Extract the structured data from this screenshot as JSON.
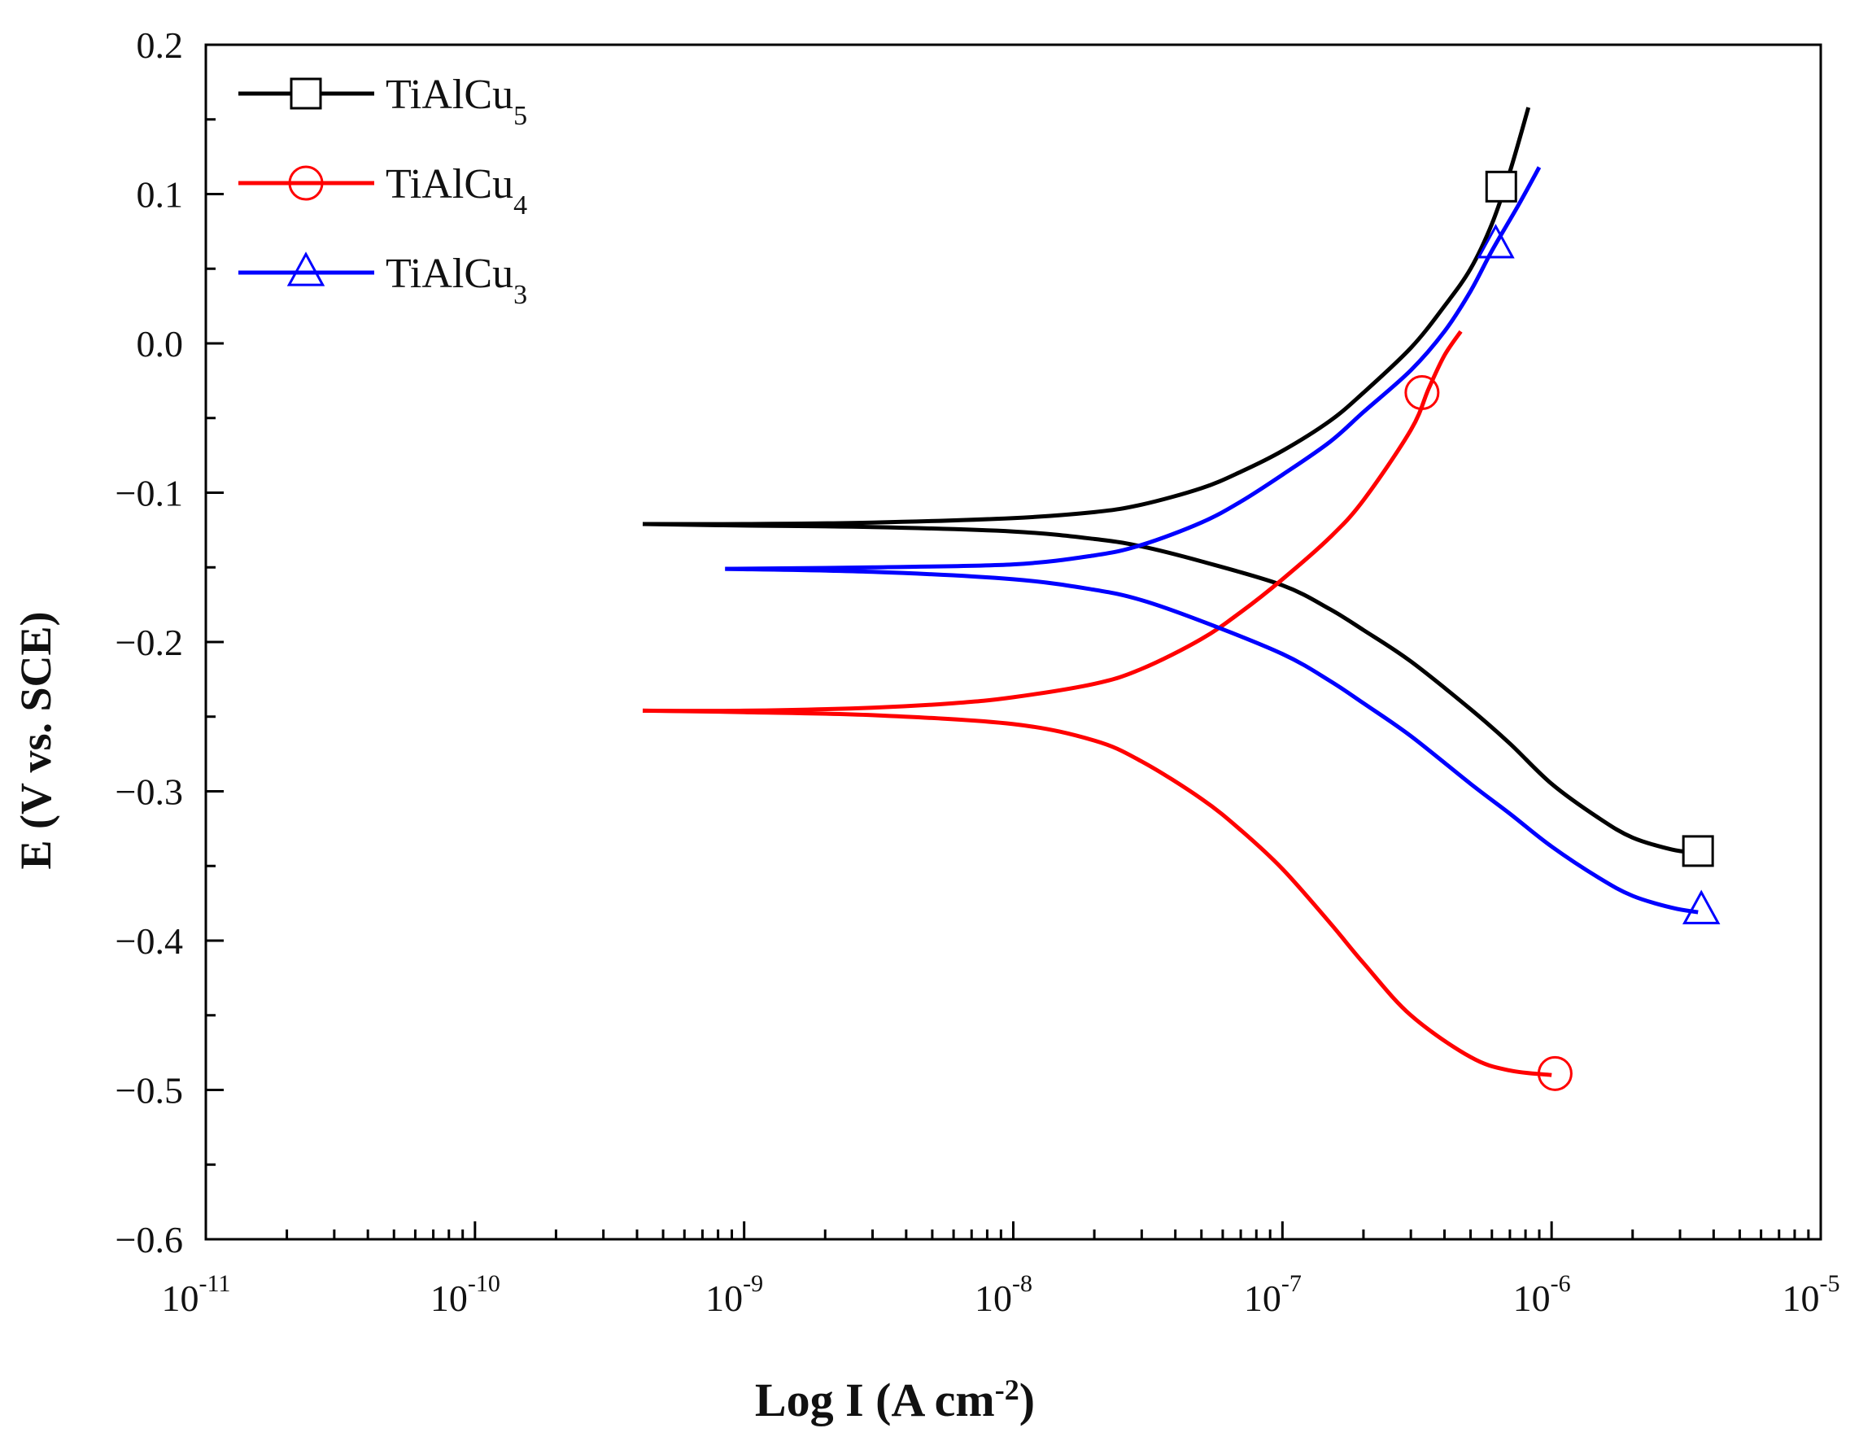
{
  "chart_data": {
    "type": "line",
    "xlabel": "Log I (A cm",
    "xlabel_sup": "-2",
    "xlabel_end": ")",
    "ylabel": "E (V vs. SCE)",
    "x_scale": "log",
    "xlim": [
      1e-11,
      1e-05
    ],
    "ylim": [
      -0.6,
      0.2
    ],
    "x_ticks": [
      {
        "value": 1e-11,
        "base": "10",
        "exp": "-11"
      },
      {
        "value": 1e-10,
        "base": "10",
        "exp": "-10"
      },
      {
        "value": 1e-09,
        "base": "10",
        "exp": "-9"
      },
      {
        "value": 1e-08,
        "base": "10",
        "exp": "-8"
      },
      {
        "value": 1e-07,
        "base": "10",
        "exp": "-7"
      },
      {
        "value": 1e-06,
        "base": "10",
        "exp": "-6"
      },
      {
        "value": 1e-05,
        "base": "10",
        "exp": "-5"
      }
    ],
    "y_ticks": [
      {
        "value": 0.2,
        "label": "0.2"
      },
      {
        "value": 0.1,
        "label": "0.1"
      },
      {
        "value": 0.0,
        "label": "0.0"
      },
      {
        "value": -0.1,
        "label": "−0.1"
      },
      {
        "value": -0.2,
        "label": "−0.2"
      },
      {
        "value": -0.3,
        "label": "−0.3"
      },
      {
        "value": -0.4,
        "label": "−0.4"
      },
      {
        "value": -0.5,
        "label": "−0.5"
      },
      {
        "value": -0.6,
        "label": "−0.6"
      }
    ],
    "grid": false,
    "legend_position": "top-left",
    "series": [
      {
        "name": "TiAlCu",
        "subscript": "5",
        "color": "#000000",
        "marker": "square",
        "anodic": [
          [
            4.2e-10,
            -0.121
          ],
          [
            1e-09,
            -0.121
          ],
          [
            3e-09,
            -0.12
          ],
          [
            1e-08,
            -0.117
          ],
          [
            2e-08,
            -0.113
          ],
          [
            3e-08,
            -0.108
          ],
          [
            5e-08,
            -0.097
          ],
          [
            7e-08,
            -0.086
          ],
          [
            1e-07,
            -0.072
          ],
          [
            1.5e-07,
            -0.052
          ],
          [
            2e-07,
            -0.033
          ],
          [
            3e-07,
            -0.003
          ],
          [
            4e-07,
            0.025
          ],
          [
            5e-07,
            0.05
          ],
          [
            6e-07,
            0.08
          ],
          [
            7e-07,
            0.115
          ],
          [
            8.2e-07,
            0.158
          ]
        ],
        "cathodic": [
          [
            4.2e-10,
            -0.121
          ],
          [
            1e-09,
            -0.122
          ],
          [
            3e-09,
            -0.123
          ],
          [
            1e-08,
            -0.126
          ],
          [
            2e-08,
            -0.131
          ],
          [
            3e-08,
            -0.136
          ],
          [
            5e-08,
            -0.146
          ],
          [
            1e-07,
            -0.162
          ],
          [
            1.5e-07,
            -0.178
          ],
          [
            2e-07,
            -0.192
          ],
          [
            3e-07,
            -0.213
          ],
          [
            5e-07,
            -0.245
          ],
          [
            7e-07,
            -0.268
          ],
          [
            1e-06,
            -0.295
          ],
          [
            1.5e-06,
            -0.318
          ],
          [
            2e-06,
            -0.331
          ],
          [
            2.8e-06,
            -0.339
          ],
          [
            3.4e-06,
            -0.341
          ]
        ],
        "markers": [
          [
            6.5e-07,
            0.105
          ],
          [
            3.5e-06,
            -0.34
          ]
        ]
      },
      {
        "name": "TiAlCu",
        "subscript": "4",
        "color": "#ff0000",
        "marker": "circle",
        "anodic": [
          [
            4.2e-10,
            -0.246
          ],
          [
            1e-09,
            -0.246
          ],
          [
            3e-09,
            -0.244
          ],
          [
            6e-09,
            -0.241
          ],
          [
            1e-08,
            -0.237
          ],
          [
            2e-08,
            -0.228
          ],
          [
            3e-08,
            -0.218
          ],
          [
            5e-08,
            -0.198
          ],
          [
            7e-08,
            -0.18
          ],
          [
            1e-07,
            -0.158
          ],
          [
            1.5e-07,
            -0.13
          ],
          [
            2e-07,
            -0.105
          ],
          [
            3e-07,
            -0.058
          ],
          [
            3.5e-07,
            -0.03
          ],
          [
            4e-07,
            -0.008
          ],
          [
            4.6e-07,
            0.008
          ]
        ],
        "cathodic": [
          [
            4.2e-10,
            -0.246
          ],
          [
            1e-09,
            -0.247
          ],
          [
            3e-09,
            -0.249
          ],
          [
            1e-08,
            -0.255
          ],
          [
            2e-08,
            -0.266
          ],
          [
            3e-08,
            -0.28
          ],
          [
            5e-08,
            -0.305
          ],
          [
            7e-08,
            -0.326
          ],
          [
            1e-07,
            -0.352
          ],
          [
            1.5e-07,
            -0.388
          ],
          [
            2e-07,
            -0.415
          ],
          [
            3e-07,
            -0.45
          ],
          [
            5e-07,
            -0.478
          ],
          [
            7e-07,
            -0.487
          ],
          [
            1e-06,
            -0.49
          ]
        ],
        "markers": [
          [
            3.3e-07,
            -0.033
          ],
          [
            1.03e-06,
            -0.489
          ]
        ]
      },
      {
        "name": "TiAlCu",
        "subscript": "3",
        "color": "#0000ff",
        "marker": "triangle",
        "anodic": [
          [
            8.5e-10,
            -0.151
          ],
          [
            3e-09,
            -0.15
          ],
          [
            1e-08,
            -0.148
          ],
          [
            2e-08,
            -0.142
          ],
          [
            3e-08,
            -0.135
          ],
          [
            5e-08,
            -0.12
          ],
          [
            7e-08,
            -0.106
          ],
          [
            1e-07,
            -0.088
          ],
          [
            1.5e-07,
            -0.066
          ],
          [
            2e-07,
            -0.046
          ],
          [
            3e-07,
            -0.018
          ],
          [
            4e-07,
            0.008
          ],
          [
            5e-07,
            0.035
          ],
          [
            6e-07,
            0.062
          ],
          [
            7.5e-07,
            0.092
          ],
          [
            9e-07,
            0.118
          ]
        ],
        "cathodic": [
          [
            8.5e-10,
            -0.151
          ],
          [
            3e-09,
            -0.153
          ],
          [
            1e-08,
            -0.158
          ],
          [
            2e-08,
            -0.165
          ],
          [
            3e-08,
            -0.172
          ],
          [
            5e-08,
            -0.186
          ],
          [
            1e-07,
            -0.208
          ],
          [
            1.5e-07,
            -0.226
          ],
          [
            2e-07,
            -0.241
          ],
          [
            3e-07,
            -0.263
          ],
          [
            5e-07,
            -0.295
          ],
          [
            7e-07,
            -0.315
          ],
          [
            1e-06,
            -0.337
          ],
          [
            1.5e-06,
            -0.358
          ],
          [
            2e-06,
            -0.37
          ],
          [
            2.8e-06,
            -0.378
          ],
          [
            3.5e-06,
            -0.381
          ]
        ],
        "markers": [
          [
            6.2e-07,
            0.066
          ],
          [
            3.6e-06,
            -0.38
          ]
        ]
      }
    ]
  }
}
